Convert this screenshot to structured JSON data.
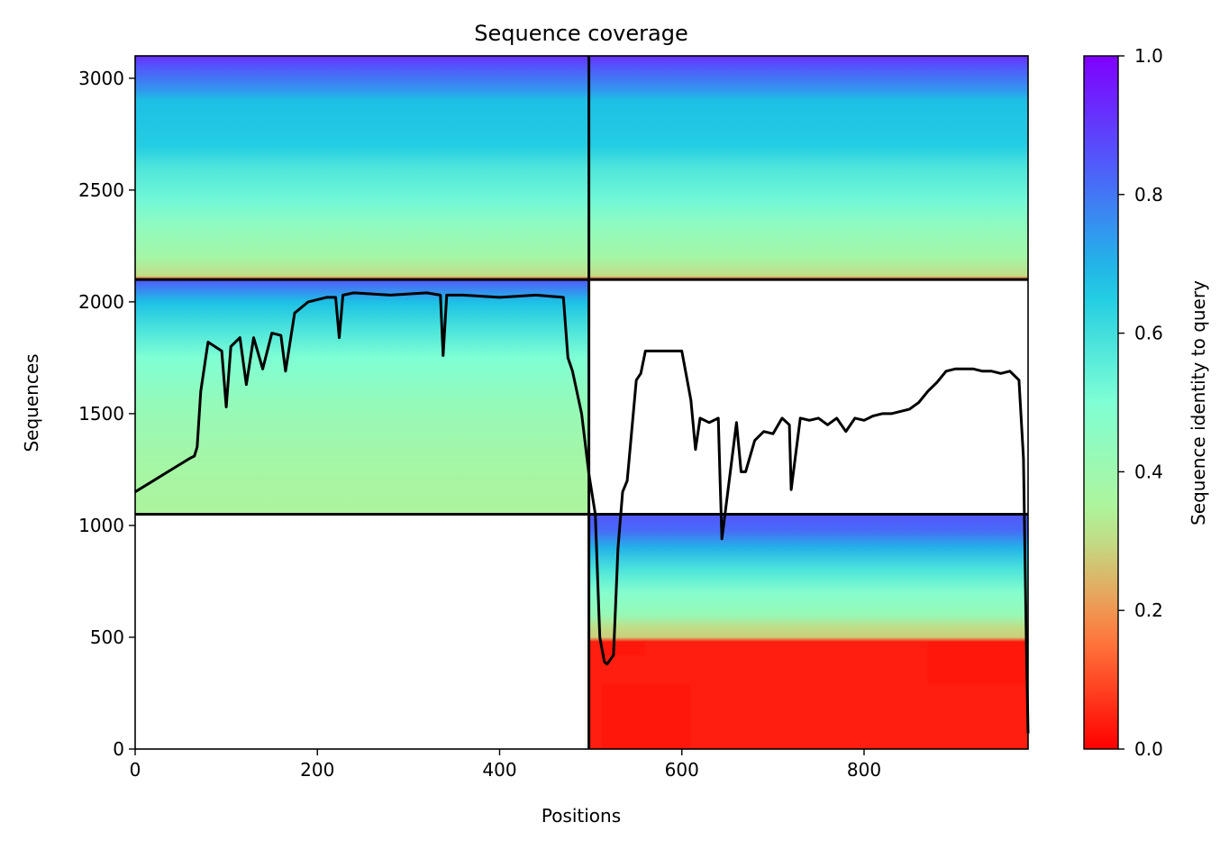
{
  "chart_data": {
    "type": "heatmap",
    "title": "Sequence coverage",
    "xlabel": "Positions",
    "ylabel": "Sequences",
    "xlim": [
      0,
      980
    ],
    "ylim": [
      0,
      3100
    ],
    "xticks": [
      0,
      200,
      400,
      600,
      800
    ],
    "yticks": [
      0,
      500,
      1000,
      1500,
      2000,
      2500,
      3000
    ],
    "colorbar": {
      "label": "Sequence identity to query",
      "range": [
        0.0,
        1.0
      ],
      "ticks": [
        "0.0",
        "0.2",
        "0.4",
        "0.6",
        "0.8",
        "1.0"
      ],
      "colormap": "rainbow_r",
      "stops": [
        "#ff0000",
        "#ff7f40",
        "#b2f396",
        "#7fffd4",
        "#19c8e3",
        "#4d61fa",
        "#8000ff"
      ]
    },
    "dividers": {
      "x": [
        498
      ],
      "y": [
        1050,
        2100
      ]
    },
    "blocks": [
      {
        "name": "block-1",
        "x_range": [
          0,
          498
        ],
        "y_range": [
          2100,
          3100
        ],
        "identity_gradient": [
          [
            2100,
            0.05
          ],
          [
            2115,
            0.3
          ],
          [
            2200,
            0.38
          ],
          [
            2350,
            0.45
          ],
          [
            2450,
            0.52
          ],
          [
            2600,
            0.58
          ],
          [
            2700,
            0.65
          ],
          [
            2900,
            0.68
          ],
          [
            2950,
            0.75
          ],
          [
            3050,
            0.85
          ],
          [
            3100,
            0.92
          ]
        ]
      },
      {
        "name": "block-2",
        "x_range": [
          498,
          980
        ],
        "y_range": [
          2100,
          3100
        ],
        "identity_gradient": [
          [
            2100,
            0.05
          ],
          [
            2115,
            0.3
          ],
          [
            2200,
            0.38
          ],
          [
            2350,
            0.45
          ],
          [
            2450,
            0.52
          ],
          [
            2600,
            0.58
          ],
          [
            2700,
            0.65
          ],
          [
            2900,
            0.68
          ],
          [
            2950,
            0.75
          ],
          [
            3050,
            0.85
          ],
          [
            3100,
            0.92
          ]
        ]
      },
      {
        "name": "block-3",
        "x_range": [
          0,
          498
        ],
        "y_range": [
          1050,
          2100
        ],
        "identity_gradient": [
          [
            1050,
            0.35
          ],
          [
            1300,
            0.38
          ],
          [
            1550,
            0.43
          ],
          [
            1750,
            0.5
          ],
          [
            1900,
            0.6
          ],
          [
            2000,
            0.68
          ],
          [
            2060,
            0.78
          ],
          [
            2100,
            0.85
          ]
        ]
      },
      {
        "name": "block-4",
        "x_range": [
          498,
          980
        ],
        "y_range": [
          0,
          1050
        ],
        "identity_gradient": [
          [
            480,
            0.04
          ],
          [
            500,
            0.28
          ],
          [
            540,
            0.3
          ],
          [
            600,
            0.42
          ],
          [
            700,
            0.48
          ],
          [
            800,
            0.58
          ],
          [
            900,
            0.7
          ],
          [
            980,
            0.82
          ],
          [
            1050,
            0.85
          ]
        ]
      }
    ],
    "red_patches": [
      {
        "x_range": [
          512,
          610
        ],
        "y_range": [
          0,
          290
        ]
      },
      {
        "x_range": [
          870,
          980
        ],
        "y_range": [
          290,
          480
        ]
      },
      {
        "x_range": [
          510,
          560
        ],
        "y_range": [
          420,
          480
        ]
      }
    ],
    "coverage_line": {
      "name": "Coverage",
      "x": [
        0,
        20,
        40,
        60,
        65,
        68,
        72,
        80,
        95,
        100,
        105,
        115,
        122,
        130,
        140,
        150,
        160,
        165,
        175,
        190,
        210,
        220,
        224,
        228,
        240,
        280,
        320,
        335,
        338,
        342,
        360,
        400,
        440,
        470,
        475,
        480,
        490,
        498,
        505,
        510,
        515,
        518,
        525,
        530,
        535,
        540,
        550,
        555,
        560,
        600,
        610,
        615,
        620,
        630,
        640,
        642,
        644,
        660,
        665,
        670,
        680,
        690,
        700,
        710,
        718,
        720,
        730,
        740,
        750,
        760,
        770,
        780,
        790,
        800,
        810,
        820,
        830,
        840,
        850,
        860,
        870,
        880,
        890,
        900,
        910,
        920,
        930,
        940,
        950,
        960,
        970,
        975,
        978,
        980
      ],
      "values": [
        1150,
        1200,
        1250,
        1300,
        1310,
        1350,
        1600,
        1820,
        1780,
        1530,
        1800,
        1840,
        1630,
        1840,
        1700,
        1860,
        1850,
        1690,
        1950,
        2000,
        2020,
        2020,
        1840,
        2030,
        2040,
        2030,
        2040,
        2030,
        1760,
        2030,
        2030,
        2020,
        2030,
        2020,
        1750,
        1690,
        1500,
        1230,
        1050,
        500,
        390,
        380,
        420,
        900,
        1150,
        1200,
        1650,
        1680,
        1780,
        1780,
        1560,
        1340,
        1480,
        1460,
        1480,
        1200,
        940,
        1460,
        1240,
        1240,
        1380,
        1420,
        1410,
        1480,
        1450,
        1160,
        1480,
        1470,
        1480,
        1450,
        1480,
        1420,
        1480,
        1470,
        1490,
        1500,
        1500,
        1510,
        1520,
        1550,
        1600,
        1640,
        1690,
        1700,
        1700,
        1700,
        1690,
        1690,
        1680,
        1690,
        1650,
        1300,
        500,
        70
      ]
    }
  }
}
